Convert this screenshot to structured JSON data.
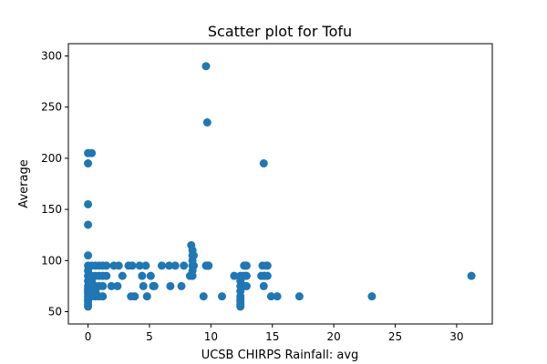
{
  "chart_data": {
    "type": "scatter",
    "title": "Scatter plot for Tofu",
    "xlabel": "UCSB CHIRPS Rainfall: avg",
    "ylabel": "Average",
    "xlim": [
      -1.6,
      32.9
    ],
    "ylim": [
      38,
      312
    ],
    "xticks": [
      0,
      5,
      10,
      15,
      20,
      25,
      30
    ],
    "yticks": [
      50,
      100,
      150,
      200,
      250,
      300
    ],
    "grid": false,
    "legend": "none",
    "marker_color": "#1f77b4",
    "series": [
      {
        "x": [
          0,
          0,
          0,
          0,
          0,
          0,
          0,
          0,
          0,
          0,
          0,
          0,
          0,
          0,
          0,
          0,
          0,
          0,
          0.3,
          0.3,
          0.3,
          0.3,
          0.3,
          0.3,
          0.3,
          0.6,
          0.6,
          0.6,
          0.6,
          0.6,
          0.9,
          0.9,
          0.9,
          0.9,
          1.2,
          1.2,
          1.2,
          1.2,
          1.5,
          1.5,
          1.9,
          2.1,
          2.4,
          2.5,
          2.8,
          3.3,
          3.5,
          3.6,
          3.8,
          4.2,
          4.4,
          4.5,
          4.7,
          4.8,
          5.1,
          5.3,
          5.4,
          6.0,
          6.6,
          6.7,
          7.1,
          7.6,
          7.8,
          8.3,
          8.4,
          8.5,
          8.5,
          8.5,
          8.5,
          8.5,
          8.5,
          8.5,
          8.6,
          8.6,
          8.6,
          9.4,
          9.6,
          9.6,
          9.7,
          9.7,
          9.7,
          9.8,
          9.8,
          9.8,
          10.9,
          11.9,
          12.4,
          12.4,
          12.4,
          12.4,
          12.4,
          12.4,
          12.4,
          12.4,
          12.4,
          12.5,
          12.6,
          12.7,
          12.8,
          12.8,
          12.8,
          12.9,
          12.9,
          12.9,
          14.1,
          14.2,
          14.3,
          14.3,
          14.3,
          14.4,
          14.5,
          14.6,
          14.6,
          14.9,
          15.4,
          17.2,
          23.1,
          31.2
        ],
        "y": [
          205,
          195,
          155,
          135,
          105,
          95,
          90,
          85,
          80,
          75,
          72,
          70,
          68,
          65,
          62,
          60,
          57,
          55,
          205,
          95,
          85,
          80,
          75,
          70,
          65,
          95,
          85,
          75,
          70,
          65,
          95,
          85,
          75,
          65,
          95,
          85,
          75,
          65,
          95,
          85,
          75,
          95,
          75,
          95,
          85,
          95,
          65,
          95,
          65,
          95,
          85,
          75,
          95,
          65,
          85,
          75,
          75,
          95,
          95,
          75,
          95,
          75,
          95,
          85,
          115,
          110,
          105,
          100,
          95,
          90,
          85,
          95,
          95,
          105,
          95,
          65,
          95,
          290,
          235,
          95,
          95,
          95,
          95,
          95,
          65,
          85,
          85,
          80,
          75,
          70,
          65,
          62,
          60,
          57,
          55,
          75,
          85,
          95,
          75,
          85,
          95,
          75,
          95,
          85,
          85,
          95,
          85,
          195,
          75,
          85,
          95,
          85,
          95,
          65,
          65,
          65,
          65,
          85
        ]
      }
    ]
  }
}
